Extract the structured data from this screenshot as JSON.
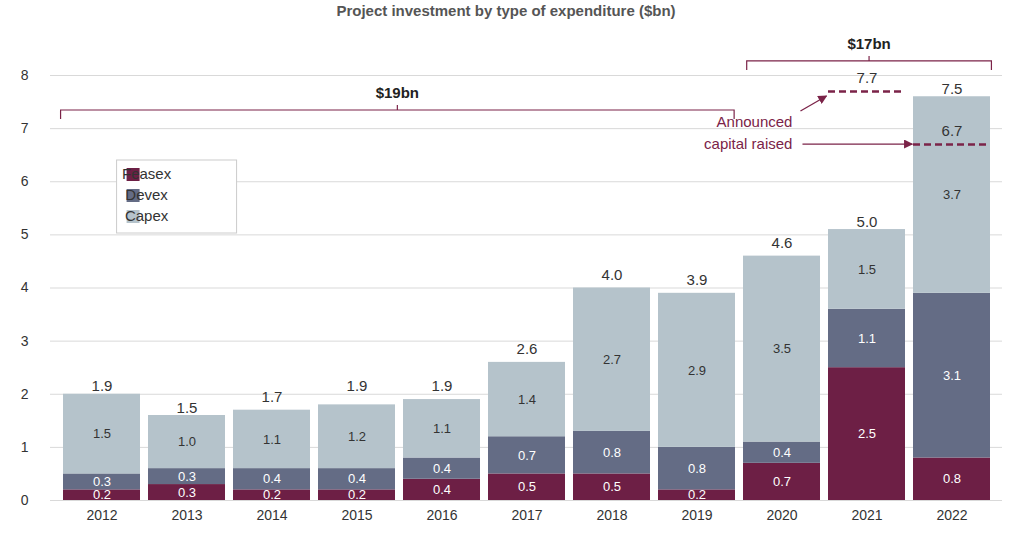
{
  "chart_data": {
    "type": "bar",
    "title": "Project investment by type of expenditure ($bn)",
    "categories": [
      "2012",
      "2013",
      "2014",
      "2015",
      "2016",
      "2017",
      "2018",
      "2019",
      "2020",
      "2021",
      "2022"
    ],
    "series": [
      {
        "name": "Feasex",
        "color": "#6d1f45",
        "values": [
          0.2,
          0.3,
          0.2,
          0.2,
          0.4,
          0.5,
          0.5,
          0.2,
          0.7,
          2.5,
          0.8
        ]
      },
      {
        "name": "Devex",
        "color": "#646c85",
        "values": [
          0.3,
          0.3,
          0.4,
          0.4,
          0.4,
          0.7,
          0.8,
          0.8,
          0.4,
          1.1,
          3.1
        ]
      },
      {
        "name": "Capex",
        "color": "#b5c3cb",
        "values": [
          1.5,
          1.0,
          1.1,
          1.2,
          1.1,
          1.4,
          2.7,
          2.9,
          3.5,
          1.5,
          3.7
        ],
        "value_labels": [
          "1.5",
          "1.0",
          "1.1",
          "1.2",
          "1.1",
          "1.4",
          "2.7",
          "2.9",
          "3.5",
          "1.5",
          "3.7"
        ]
      }
    ],
    "totals": {
      "values": [
        1.9,
        1.5,
        1.7,
        1.9,
        1.9,
        2.6,
        4.0,
        3.9,
        4.6,
        5.0,
        7.5
      ],
      "value_labels": [
        "1.9",
        "1.5",
        "1.7",
        "1.9",
        "1.9",
        "2.6",
        "4.0",
        "3.9",
        "4.6",
        "5.0",
        "7.5"
      ]
    },
    "annotations": [
      {
        "text": "$19bn",
        "from": "2012",
        "to": "2019"
      },
      {
        "text": "$17bn",
        "from": "2020",
        "to": "2022"
      }
    ],
    "announced": {
      "label": "Announced capital raised",
      "categories": [
        "2021",
        "2022"
      ],
      "values": [
        7.7,
        6.7
      ],
      "color": "#7b2348"
    },
    "ylim": [
      0,
      8
    ],
    "yticks": [
      0,
      1,
      2,
      3,
      4,
      5,
      6,
      7,
      8
    ],
    "grid": true,
    "stacked": true,
    "data_labels": true,
    "legend": "upper left"
  }
}
